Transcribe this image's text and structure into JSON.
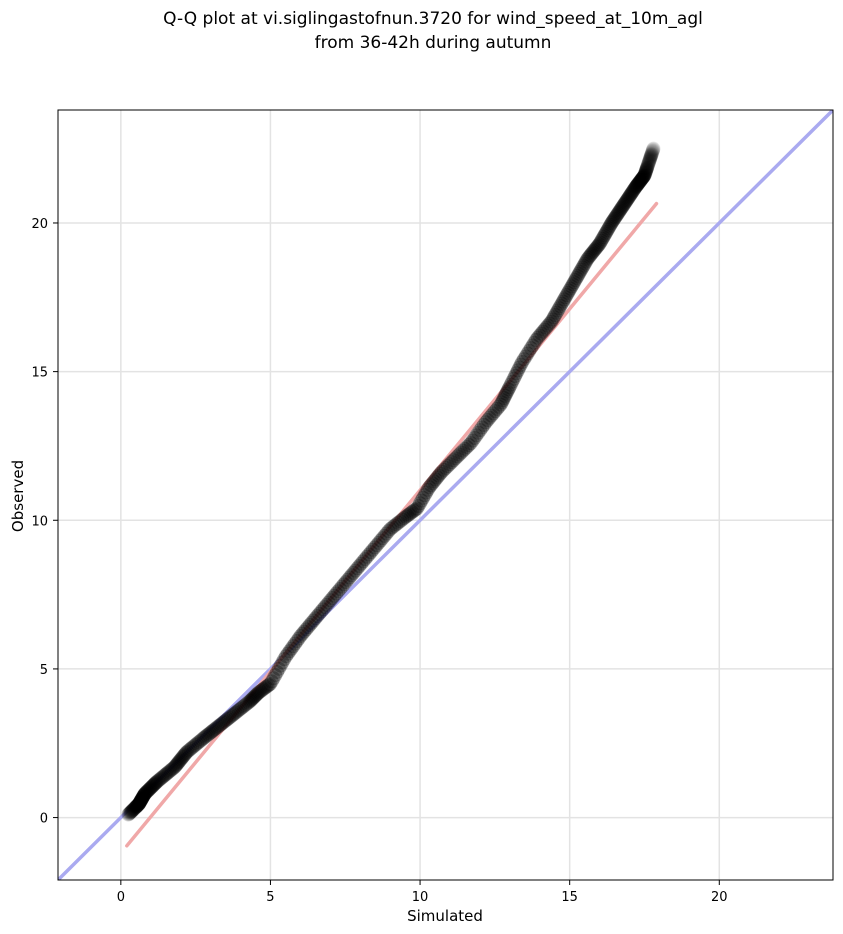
{
  "chart_data": {
    "type": "scatter",
    "title_lines": [
      "Q-Q plot at vi.siglingastofnun.3720 for wind_speed_at_10m_agl",
      "from 36-42h during autumn"
    ],
    "xlabel": "Simulated",
    "ylabel": "Observed",
    "xlim": [
      -2.1,
      23.8
    ],
    "ylim": [
      -2.1,
      23.8
    ],
    "x_ticks": [
      0,
      5,
      10,
      15,
      20
    ],
    "y_ticks": [
      0,
      5,
      10,
      15,
      20
    ],
    "grid": true,
    "colors": {
      "identity_line": "#aaaaf0",
      "fit_line": "#f0a8a8",
      "points": "#000000",
      "inner_points_tint": "#1a1a80"
    },
    "reference_lines": [
      {
        "kind": "identity",
        "x": [
          -2.1,
          23.8
        ],
        "y": [
          -2.1,
          23.8
        ]
      },
      {
        "kind": "fit",
        "x": [
          0.2,
          17.9
        ],
        "y": [
          -0.95,
          20.65
        ]
      }
    ],
    "qq_curve": {
      "x": [
        0.25,
        0.6,
        0.8,
        1.2,
        1.8,
        2.2,
        2.8,
        3.3,
        3.8,
        4.3,
        4.6,
        5.0,
        5.5,
        6.0,
        6.5,
        7.0,
        7.5,
        8.0,
        8.5,
        9.0,
        9.5,
        9.9,
        10.3,
        10.7,
        11.2,
        11.7,
        12.2,
        12.7,
        13.0,
        13.4,
        13.9,
        14.4,
        14.8,
        15.2,
        15.6,
        16.0,
        16.4,
        16.8,
        17.2,
        17.5,
        17.8
      ],
      "y": [
        0.1,
        0.45,
        0.8,
        1.2,
        1.7,
        2.2,
        2.7,
        3.1,
        3.5,
        3.9,
        4.2,
        4.5,
        5.4,
        6.1,
        6.7,
        7.3,
        7.9,
        8.5,
        9.1,
        9.7,
        10.1,
        10.4,
        11.1,
        11.6,
        12.1,
        12.6,
        13.3,
        13.9,
        14.5,
        15.3,
        16.1,
        16.7,
        17.4,
        18.1,
        18.8,
        19.3,
        20.0,
        20.6,
        21.2,
        21.6,
        22.5
      ]
    },
    "n_points": 420
  }
}
